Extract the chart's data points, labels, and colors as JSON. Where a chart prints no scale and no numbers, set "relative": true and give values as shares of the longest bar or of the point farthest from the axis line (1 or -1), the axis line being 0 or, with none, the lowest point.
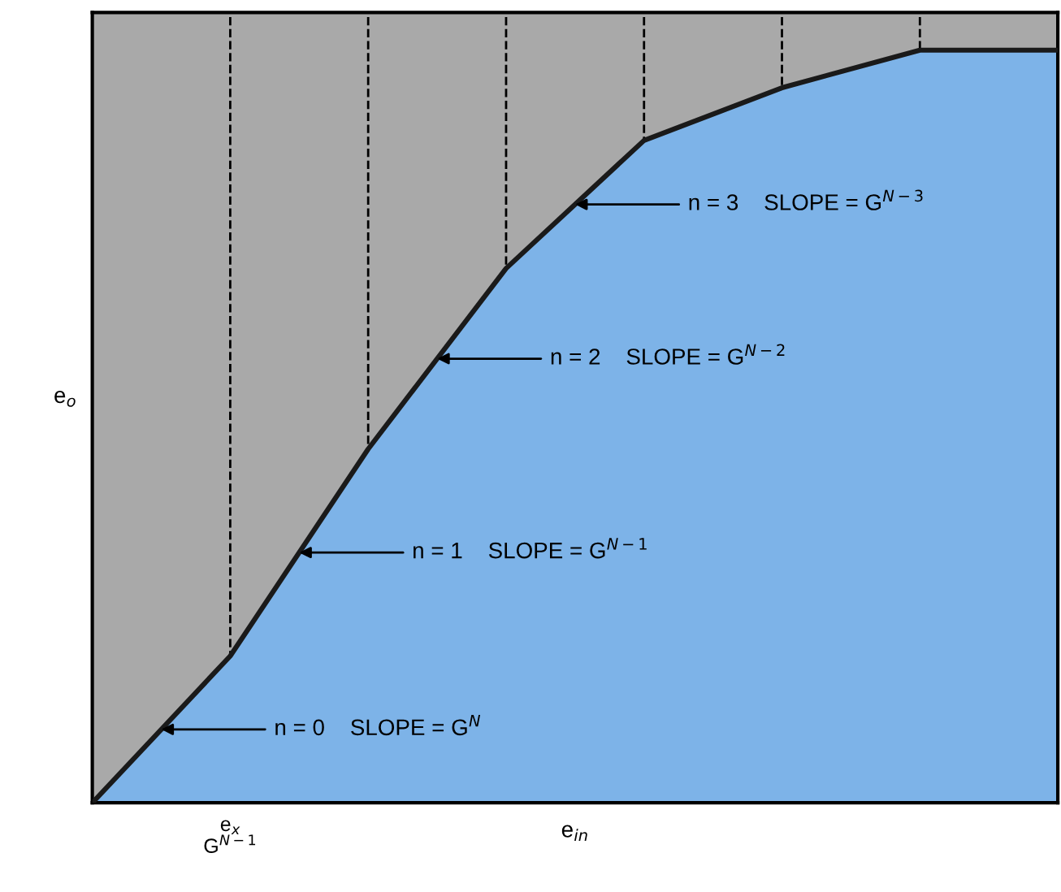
{
  "chart_data": {
    "type": "area",
    "relative": true,
    "xlabel": "e$_{in}$",
    "ylabel": "e$_{o}$",
    "categories": [
      null,
      null,
      null,
      null,
      null,
      null,
      null,
      null
    ],
    "series": [
      {
        "color": "#7db3e8",
        "values": [
          0,
          0.195,
          0.47,
          0.71,
          0.88,
          0.95,
          1,
          1
        ]
      }
    ],
    "annotations": [
      "e$_{x}$\nG$^{N−1}$",
      "n = 0    SLOPE = G$^{N}$",
      "n = 1    SLOPE = G$^{N−1}$",
      "n = 2    SLOPE = G$^{N−2}$",
      "n = 3    SLOPE = G$^{N−3}$"
    ],
    "grid": "x",
    "legend": false,
    "marker": "none",
    "line_style": "solid"
  }
}
